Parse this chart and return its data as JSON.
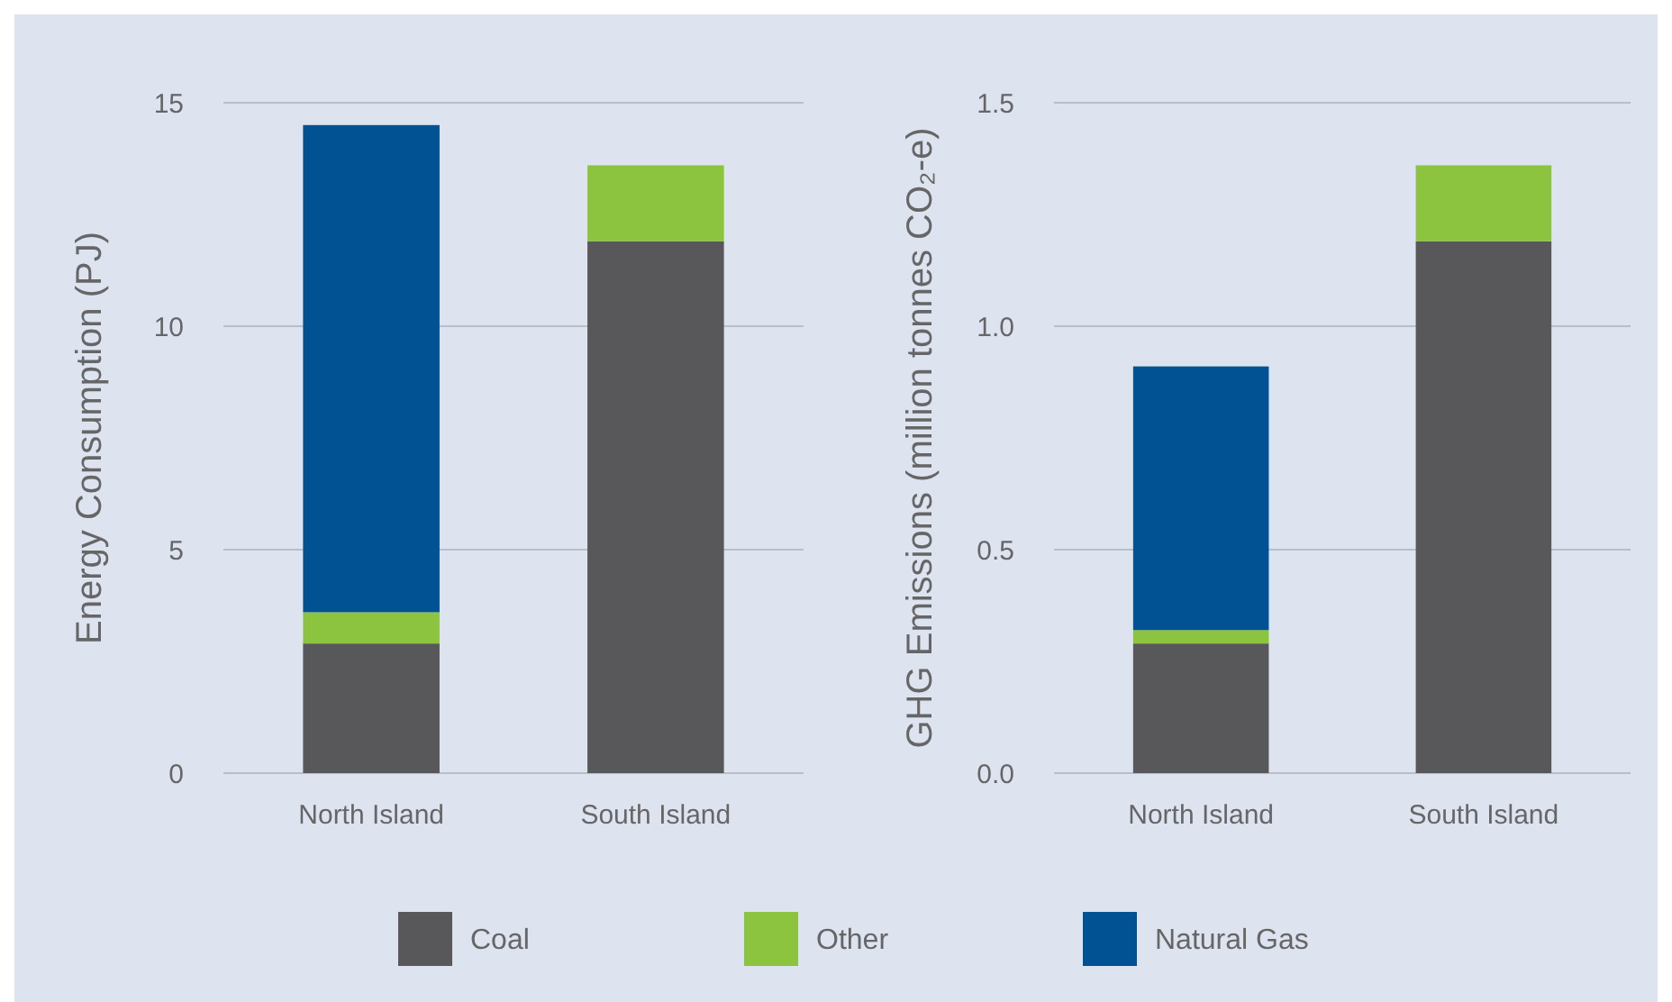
{
  "chart_data": [
    {
      "type": "bar",
      "stacked": true,
      "ylabel": "Energy Consumption (PJ)",
      "categories": [
        "North Island",
        "South Island"
      ],
      "ylim": [
        0,
        15
      ],
      "yticks": [
        0,
        5,
        10,
        15
      ],
      "grid": "y",
      "legend": "bottom",
      "series": [
        {
          "name": "Coal",
          "color": "#58585a",
          "values": [
            2.9,
            11.9
          ]
        },
        {
          "name": "Other",
          "color": "#8cc43f",
          "values": [
            0.7,
            1.7
          ]
        },
        {
          "name": "Natural Gas",
          "color": "#005293",
          "values": [
            10.9,
            0
          ]
        }
      ]
    },
    {
      "type": "bar",
      "stacked": true,
      "ylabel": "GHG Emissions (million tonnes CO₂-e)",
      "categories": [
        "North Island",
        "South Island"
      ],
      "ylim": [
        0,
        1.5
      ],
      "yticks": [
        {
          "value": 0,
          "label": "0.0"
        },
        {
          "value": 0.5,
          "label": "0.5"
        },
        {
          "value": 1,
          "label": "1.0"
        },
        {
          "value": 1.5,
          "label": "1.5"
        }
      ],
      "grid": "y",
      "series": [
        {
          "color": "#58585a",
          "values": [
            0.29,
            1.19
          ]
        },
        {
          "color": "#8cc43f",
          "values": [
            0.03,
            0.17
          ]
        },
        {
          "color": "#005293",
          "values": [
            0.59,
            0
          ]
        }
      ]
    }
  ]
}
